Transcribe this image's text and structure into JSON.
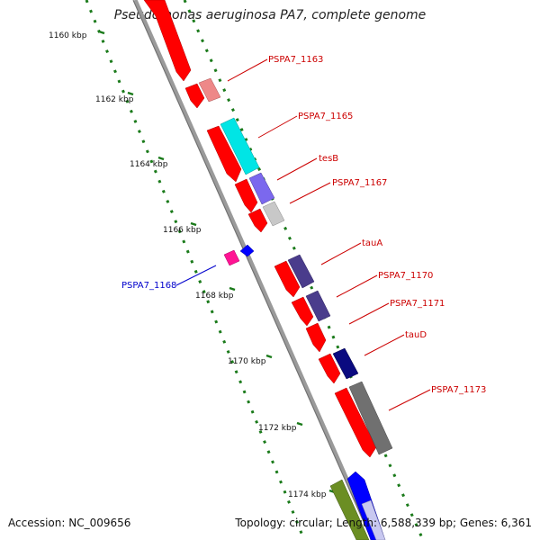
{
  "title": "Pseudomonas aeruginosa PA7, complete genome",
  "footer": {
    "accession": "Accession: NC_009656",
    "summary": "Topology: circular; Length: 6,588,339 bp; Genes: 6,361"
  },
  "scale_labels": [
    "1160 kbp",
    "1162 kbp",
    "1164 kbp",
    "1166 kbp",
    "1168 kbp",
    "1170 kbp",
    "1172 kbp",
    "1174 kbp"
  ],
  "gene_labels": [
    {
      "text": "PSPA7_1163",
      "color": "#cc0000"
    },
    {
      "text": "PSPA7_1165",
      "color": "#cc0000"
    },
    {
      "text": "tesB",
      "color": "#cc0000"
    },
    {
      "text": "PSPA7_1167",
      "color": "#cc0000"
    },
    {
      "text": "tauA",
      "color": "#cc0000"
    },
    {
      "text": "PSPA7_1170",
      "color": "#cc0000"
    },
    {
      "text": "PSPA7_1171",
      "color": "#cc0000"
    },
    {
      "text": "tauD",
      "color": "#cc0000"
    },
    {
      "text": "PSPA7_1173",
      "color": "#cc0000"
    },
    {
      "text": "PSPA7_1168",
      "color": "#0000cc"
    }
  ],
  "colors": {
    "backbone": "#8a8a8a",
    "ticks": "#1a7a1a",
    "cds_forward": "#ff0000",
    "pink": "#ee8888",
    "cyan": "#00e5e5",
    "lavender": "#7b68ee",
    "gray_light": "#c8c8c8",
    "slate": "#4a3c8c",
    "navy": "#0a0a80",
    "dark_gray": "#707070",
    "olive": "#6b8e23",
    "blue": "#0000ff",
    "magenta": "#ff1493"
  }
}
